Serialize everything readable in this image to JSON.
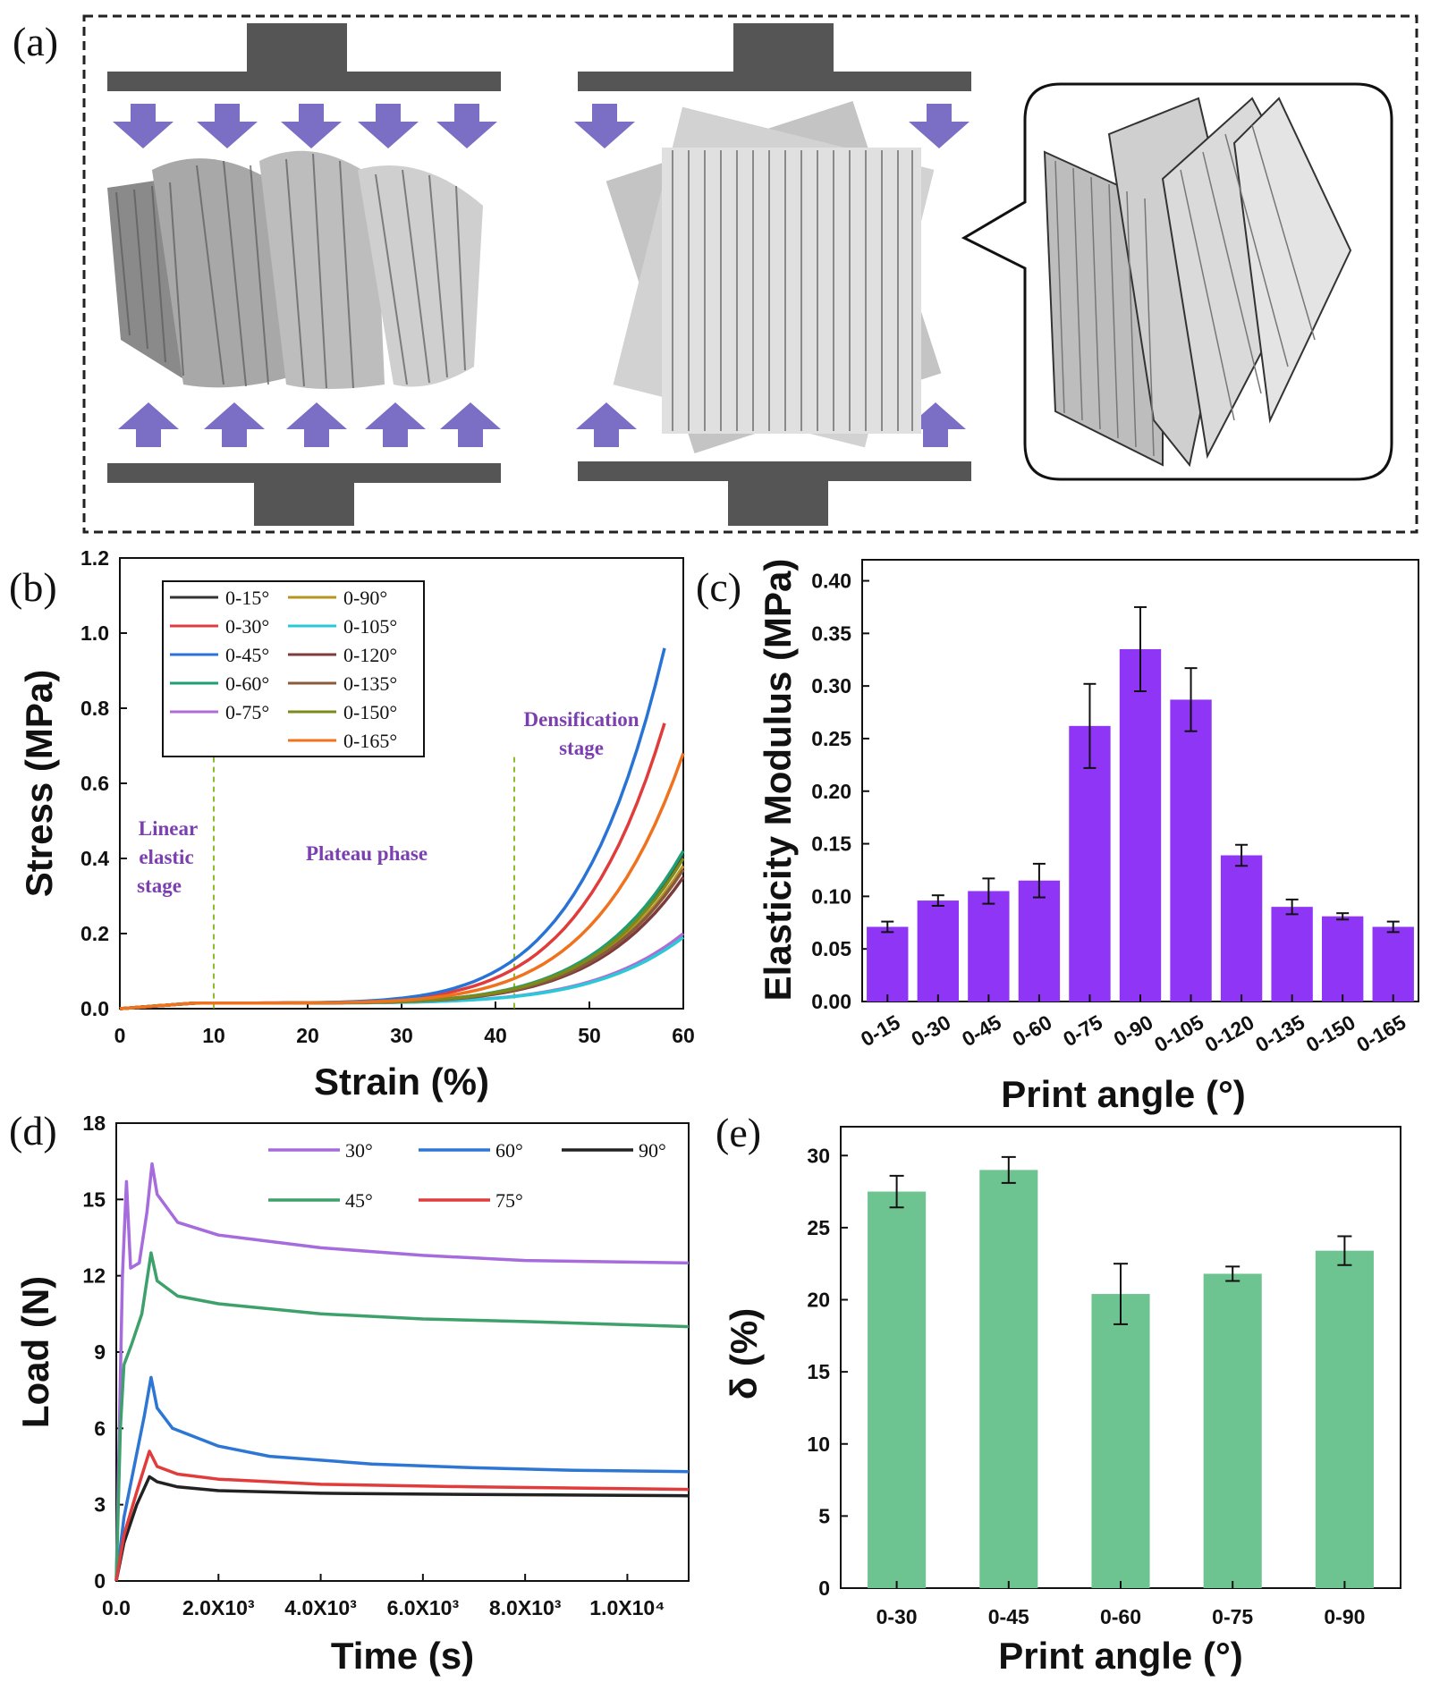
{
  "panels": {
    "a": {
      "label": "(a)"
    },
    "b": {
      "label": "(b)"
    },
    "c": {
      "label": "(c)"
    },
    "d": {
      "label": "(d)"
    },
    "e": {
      "label": "(e)"
    }
  },
  "colors": {
    "illustration_press": "#555555",
    "illustration_arrow": "#7a6fc4",
    "bar_c": "#8f35f5",
    "bar_e": "#6ec490"
  },
  "chart_data": [
    {
      "panel": "b",
      "type": "line",
      "xlabel": "Strain (%)",
      "ylabel": "Stress (MPa)",
      "xlim": [
        0,
        60
      ],
      "ylim": [
        0,
        1.2
      ],
      "xticks": [
        "0",
        "10",
        "20",
        "30",
        "40",
        "50",
        "60"
      ],
      "yticks": [
        "0.0",
        "0.2",
        "0.4",
        "0.6",
        "0.8",
        "1.0",
        "1.2"
      ],
      "legend_position": "top-left",
      "annotations": {
        "linear": [
          "Linear",
          "elastic",
          "stage"
        ],
        "plateau": "Plateau phase",
        "densification": [
          "Densification",
          "stage"
        ]
      },
      "stage_boundaries": [
        10,
        42
      ],
      "series": [
        {
          "name": "0-15°",
          "color": "#333333",
          "xmax": 60,
          "ymax": 0.41
        },
        {
          "name": "0-30°",
          "color": "#e03c3c",
          "xmax": 58,
          "ymax": 0.76
        },
        {
          "name": "0-45°",
          "color": "#2a73d6",
          "xmax": 58,
          "ymax": 0.96
        },
        {
          "name": "0-60°",
          "color": "#1f9e73",
          "xmax": 60,
          "ymax": 0.42
        },
        {
          "name": "0-75°",
          "color": "#b06bd6",
          "xmax": 60,
          "ymax": 0.2
        },
        {
          "name": "0-90°",
          "color": "#b89520",
          "xmax": 60,
          "ymax": 0.38
        },
        {
          "name": "0-105°",
          "color": "#2bc8d8",
          "xmax": 60,
          "ymax": 0.19
        },
        {
          "name": "0-120°",
          "color": "#7d3b3b",
          "xmax": 60,
          "ymax": 0.35
        },
        {
          "name": "0-135°",
          "color": "#8a5a3c",
          "xmax": 60,
          "ymax": 0.37
        },
        {
          "name": "0-150°",
          "color": "#7d8a1a",
          "xmax": 60,
          "ymax": 0.4
        },
        {
          "name": "0-165°",
          "color": "#f0721e",
          "xmax": 60,
          "ymax": 0.68
        }
      ]
    },
    {
      "panel": "c",
      "type": "bar",
      "xlabel": "Print angle (°)",
      "ylabel": "Elasticity Modulus (MPa)",
      "ylim": [
        0,
        0.42
      ],
      "yticks": [
        "0.00",
        "0.05",
        "0.10",
        "0.15",
        "0.20",
        "0.25",
        "0.30",
        "0.35",
        "0.40"
      ],
      "categories": [
        "0-15",
        "0-30",
        "0-45",
        "0-60",
        "0-75",
        "0-90",
        "0-105",
        "0-120",
        "0-135",
        "0-150",
        "0-165"
      ],
      "values": [
        0.071,
        0.096,
        0.105,
        0.115,
        0.262,
        0.335,
        0.287,
        0.139,
        0.09,
        0.081,
        0.071
      ],
      "errors": [
        0.005,
        0.005,
        0.012,
        0.016,
        0.04,
        0.04,
        0.03,
        0.01,
        0.007,
        0.003,
        0.005
      ]
    },
    {
      "panel": "d",
      "type": "line",
      "xlabel": "Time (s)",
      "ylabel": "Load (N)",
      "xlim": [
        0,
        11200
      ],
      "ylim": [
        0,
        18
      ],
      "xticks": [
        {
          "value": 0,
          "label": "0.0"
        },
        {
          "value": 2000,
          "label": "2.0X10³"
        },
        {
          "value": 4000,
          "label": "4.0X10³"
        },
        {
          "value": 6000,
          "label": "6.0X10³"
        },
        {
          "value": 8000,
          "label": "8.0X10³"
        },
        {
          "value": 10000,
          "label": "1.0X10⁴"
        }
      ],
      "yticks": [
        "0",
        "3",
        "6",
        "9",
        "12",
        "15",
        "18"
      ],
      "legend_position": "top",
      "series": [
        {
          "name": "30°",
          "color": "#a66bdc",
          "points": [
            [
              0,
              0
            ],
            [
              120,
              12
            ],
            [
              200,
              15.7
            ],
            [
              280,
              12.3
            ],
            [
              450,
              12.5
            ],
            [
              600,
              14.5
            ],
            [
              700,
              16.4
            ],
            [
              800,
              15.2
            ],
            [
              1200,
              14.1
            ],
            [
              2000,
              13.6
            ],
            [
              4000,
              13.1
            ],
            [
              6000,
              12.8
            ],
            [
              8000,
              12.6
            ],
            [
              11200,
              12.5
            ]
          ]
        },
        {
          "name": "60°",
          "color": "#2d76d4",
          "points": [
            [
              0,
              0
            ],
            [
              150,
              2.5
            ],
            [
              350,
              4.5
            ],
            [
              550,
              6.5
            ],
            [
              680,
              8.0
            ],
            [
              800,
              6.8
            ],
            [
              1100,
              6.0
            ],
            [
              2000,
              5.3
            ],
            [
              3000,
              4.9
            ],
            [
              5000,
              4.6
            ],
            [
              7000,
              4.45
            ],
            [
              9000,
              4.35
            ],
            [
              11200,
              4.3
            ]
          ]
        },
        {
          "name": "90°",
          "color": "#222222",
          "points": [
            [
              0,
              0
            ],
            [
              150,
              1.5
            ],
            [
              400,
              3.0
            ],
            [
              650,
              4.1
            ],
            [
              800,
              3.9
            ],
            [
              1200,
              3.7
            ],
            [
              2000,
              3.55
            ],
            [
              4000,
              3.45
            ],
            [
              7000,
              3.4
            ],
            [
              11200,
              3.35
            ]
          ]
        },
        {
          "name": "45°",
          "color": "#3ea06a",
          "points": [
            [
              0,
              0
            ],
            [
              80,
              6.0
            ],
            [
              150,
              8.5
            ],
            [
              300,
              9.3
            ],
            [
              500,
              10.5
            ],
            [
              680,
              12.9
            ],
            [
              800,
              11.8
            ],
            [
              1200,
              11.2
            ],
            [
              2000,
              10.9
            ],
            [
              4000,
              10.5
            ],
            [
              6000,
              10.3
            ],
            [
              8000,
              10.2
            ],
            [
              11200,
              10.0
            ]
          ]
        },
        {
          "name": "75°",
          "color": "#e03c3c",
          "points": [
            [
              0,
              0
            ],
            [
              150,
              1.8
            ],
            [
              400,
              3.5
            ],
            [
              650,
              5.1
            ],
            [
              800,
              4.5
            ],
            [
              1200,
              4.2
            ],
            [
              2000,
              4.0
            ],
            [
              4000,
              3.8
            ],
            [
              7000,
              3.7
            ],
            [
              11200,
              3.6
            ]
          ]
        }
      ]
    },
    {
      "panel": "e",
      "type": "bar",
      "xlabel": "Print angle (°)",
      "ylabel": "δ (%)",
      "ylim": [
        0,
        32
      ],
      "yticks": [
        "0",
        "5",
        "10",
        "15",
        "20",
        "25",
        "30"
      ],
      "categories": [
        "0-30",
        "0-45",
        "0-60",
        "0-75",
        "0-90"
      ],
      "values": [
        27.5,
        29.0,
        20.4,
        21.8,
        23.4
      ],
      "errors": [
        1.1,
        0.9,
        2.1,
        0.5,
        1.0
      ]
    }
  ]
}
